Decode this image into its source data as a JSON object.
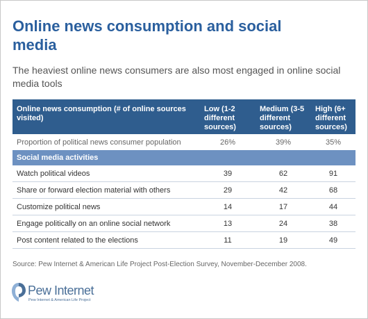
{
  "header": {
    "title": "Online news consumption and social media",
    "subtitle": "The heaviest online news consumers are also most engaged in online social media tools"
  },
  "table": {
    "columns": [
      "Online news consumption (# of online sources visited)",
      "Low (1-2 different sources)",
      "Medium (3-5 different sources)",
      "High (6+ different sources)"
    ],
    "proportion_row": [
      "Proportion of political news consumer population",
      "26%",
      "39%",
      "35%"
    ],
    "section": "Social media activities",
    "rows": [
      [
        "Watch political videos",
        39,
        62,
        91
      ],
      [
        "Share or forward election material with others",
        29,
        42,
        68
      ],
      [
        "Customize political news",
        14,
        17,
        44
      ],
      [
        "Engage politically on an online social network",
        13,
        24,
        38
      ],
      [
        "Post content related to the elections",
        11,
        19,
        49
      ]
    ]
  },
  "source": "Source: Pew Internet & American Life Project Post-Election Survey, November-December 2008.",
  "logo": {
    "name": "Pew Internet",
    "tagline": "Pew Internet & American Life Project"
  }
}
